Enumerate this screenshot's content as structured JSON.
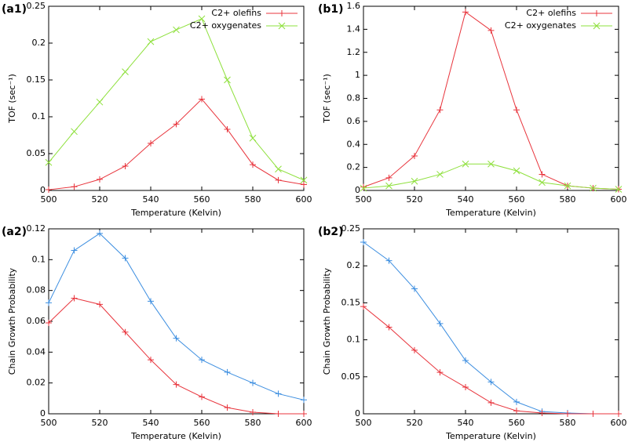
{
  "chart_data": [
    {
      "type": "line",
      "panel": "(a1)",
      "x_label": "Temperature (Kelvin)",
      "y_label": "TOF (sec⁻¹)",
      "x": [
        500,
        510,
        520,
        530,
        540,
        550,
        560,
        570,
        580,
        590,
        600
      ],
      "xlim": [
        500,
        600
      ],
      "xticks": [
        500,
        520,
        540,
        560,
        580,
        600
      ],
      "ylim": [
        0,
        0.25
      ],
      "yticks": [
        0,
        0.05,
        0.1,
        0.15,
        0.2,
        0.25
      ],
      "legend": "top-right",
      "series": [
        {
          "name": "C2+ olefins",
          "color": "#e8343c",
          "marker": "plus",
          "values": [
            0.001,
            0.005,
            0.015,
            0.033,
            0.064,
            0.09,
            0.124,
            0.083,
            0.035,
            0.014,
            0.008
          ]
        },
        {
          "name": "C2+ oxygenates",
          "color": "#8ee03c",
          "marker": "cross",
          "values": [
            0.038,
            0.08,
            0.12,
            0.161,
            0.202,
            0.218,
            0.233,
            0.15,
            0.071,
            0.029,
            0.014
          ]
        }
      ]
    },
    {
      "type": "line",
      "panel": "(b1)",
      "x_label": "Temperature (Kelvin)",
      "y_label": "TOF (sec⁻¹)",
      "x": [
        500,
        510,
        520,
        530,
        540,
        550,
        560,
        570,
        580,
        590,
        600
      ],
      "xlim": [
        500,
        600
      ],
      "xticks": [
        500,
        520,
        540,
        560,
        580,
        600
      ],
      "ylim": [
        0,
        1.6
      ],
      "yticks": [
        0,
        0.2,
        0.4,
        0.6,
        0.8,
        1,
        1.2,
        1.4,
        1.6
      ],
      "legend": "top-right",
      "series": [
        {
          "name": "C2+ olefins",
          "color": "#e8343c",
          "marker": "plus",
          "values": [
            0.03,
            0.11,
            0.3,
            0.7,
            1.55,
            1.39,
            0.7,
            0.14,
            0.04,
            0.02,
            0.01
          ]
        },
        {
          "name": "C2+ oxygenates",
          "color": "#8ee03c",
          "marker": "cross",
          "values": [
            0.02,
            0.04,
            0.08,
            0.14,
            0.23,
            0.23,
            0.17,
            0.07,
            0.04,
            0.02,
            0.01
          ]
        }
      ]
    },
    {
      "type": "line",
      "panel": "(a2)",
      "x_label": "Temperature (Kelvin)",
      "y_label": "Chain Growth Probability",
      "x": [
        500,
        510,
        520,
        530,
        540,
        550,
        560,
        570,
        580,
        590,
        600
      ],
      "xlim": [
        500,
        600
      ],
      "xticks": [
        500,
        520,
        540,
        560,
        580,
        600
      ],
      "ylim": [
        0,
        0.12
      ],
      "yticks": [
        0,
        0.02,
        0.04,
        0.06,
        0.08,
        0.1,
        0.12
      ],
      "series": [
        {
          "color": "#3c8ee0",
          "marker": "plus",
          "values": [
            0.072,
            0.106,
            0.117,
            0.101,
            0.073,
            0.049,
            0.035,
            0.027,
            0.02,
            0.013,
            0.009
          ]
        },
        {
          "color": "#e8343c",
          "marker": "plus",
          "values": [
            0.059,
            0.075,
            0.071,
            0.053,
            0.035,
            0.019,
            0.011,
            0.004,
            0.001,
            0.0,
            0.0
          ]
        }
      ]
    },
    {
      "type": "line",
      "panel": "(b2)",
      "x_label": "Temperature (Kelvin)",
      "y_label": "Chain Growth Probability",
      "x": [
        500,
        510,
        520,
        530,
        540,
        550,
        560,
        570,
        580,
        590,
        600
      ],
      "xlim": [
        500,
        600
      ],
      "xticks": [
        500,
        520,
        540,
        560,
        580,
        600
      ],
      "ylim": [
        0,
        0.25
      ],
      "yticks": [
        0,
        0.05,
        0.1,
        0.15,
        0.2,
        0.25
      ],
      "series": [
        {
          "color": "#3c8ee0",
          "marker": "plus",
          "values": [
            0.232,
            0.207,
            0.169,
            0.122,
            0.072,
            0.043,
            0.016,
            0.003,
            0.001,
            0.0,
            0.0
          ]
        },
        {
          "color": "#e8343c",
          "marker": "plus",
          "values": [
            0.145,
            0.117,
            0.086,
            0.056,
            0.036,
            0.015,
            0.004,
            0.001,
            0.0,
            0.0,
            0.0
          ]
        }
      ]
    }
  ]
}
